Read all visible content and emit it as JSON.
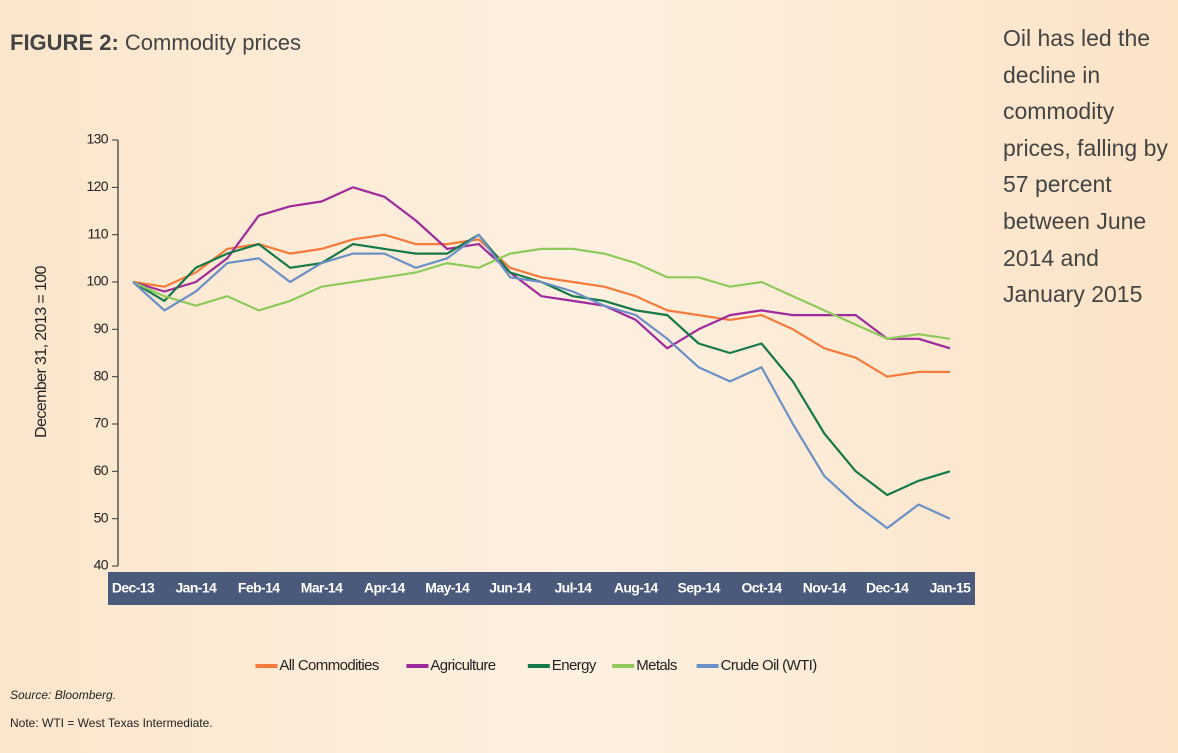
{
  "chart_data": {
    "type": "line",
    "figure_label": "FIGURE 2:",
    "title": "Commodity prices",
    "side_note": "Oil has led the decline in commodity prices, falling by 57 percent between June 2014 and January 2015",
    "ylabel": "December 31, 2013 = 100",
    "source": "Source: Bloomberg.",
    "note": "Note: WTI = West Texas Intermediate.",
    "categories": [
      "Dec-13",
      null,
      "Jan-14",
      null,
      "Feb-14",
      null,
      "Mar-14",
      null,
      "Apr-14",
      null,
      "May-14",
      null,
      "Jun-14",
      null,
      "Jul-14",
      null,
      "Aug-14",
      null,
      "Sep-14",
      null,
      "Oct-14",
      null,
      "Nov-14",
      null,
      "Dec-14",
      null,
      "Jan-15"
    ],
    "series": [
      {
        "name": "All Commodities",
        "color": "#f47b3c",
        "values": [
          100,
          99,
          102,
          107,
          108,
          106,
          107,
          109,
          110,
          108,
          108,
          109,
          103,
          101,
          100,
          99,
          97,
          94,
          93,
          92,
          93,
          90,
          86,
          84,
          80,
          81,
          81
        ]
      },
      {
        "name": "Agriculture",
        "color": "#9e2a9c",
        "values": [
          100,
          98,
          100,
          105,
          114,
          116,
          117,
          120,
          118,
          113,
          107,
          108,
          102,
          97,
          96,
          95,
          92,
          86,
          90,
          93,
          94,
          93,
          93,
          93,
          88,
          88,
          86
        ]
      },
      {
        "name": "Energy",
        "color": "#17784a",
        "values": [
          100,
          96,
          103,
          106,
          108,
          103,
          104,
          108,
          107,
          106,
          106,
          110,
          102,
          100,
          97,
          96,
          94,
          93,
          87,
          85,
          87,
          79,
          68,
          60,
          55,
          58,
          60
        ]
      },
      {
        "name": "Metals",
        "color": "#8fc95c",
        "values": [
          100,
          97,
          95,
          97,
          94,
          96,
          99,
          100,
          101,
          102,
          104,
          103,
          106,
          107,
          107,
          106,
          104,
          101,
          101,
          99,
          100,
          97,
          94,
          91,
          88,
          89,
          88
        ]
      },
      {
        "name": "Crude Oil (WTI)",
        "color": "#6b90c6",
        "values": [
          100,
          94,
          98,
          104,
          105,
          100,
          104,
          106,
          106,
          103,
          105,
          110,
          101,
          100,
          98,
          95,
          93,
          88,
          82,
          79,
          82,
          70,
          59,
          53,
          48,
          53,
          50
        ]
      }
    ],
    "ylim": [
      40,
      130
    ],
    "yticks": [
      40,
      50,
      60,
      70,
      80,
      90,
      100,
      110,
      120,
      130
    ],
    "grid": false,
    "legend": "bottom"
  }
}
